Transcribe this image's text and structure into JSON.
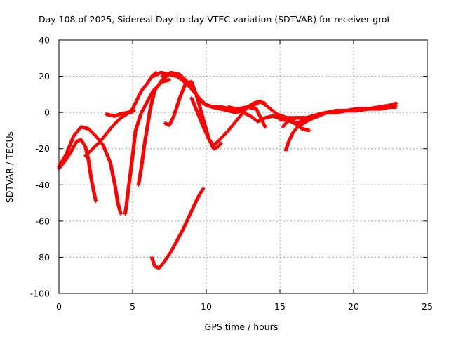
{
  "chart_data": {
    "type": "scatter",
    "title": "Day 108 of 2025, Sidereal Day-to-day VTEC variation (SDTVAR) for receiver grot",
    "xlabel": "GPS time / hours",
    "ylabel": "SDTVAR / TECUs",
    "xlim": [
      0,
      25
    ],
    "ylim": [
      -100,
      40
    ],
    "xticks": [
      0,
      5,
      10,
      15,
      20,
      25
    ],
    "yticks": [
      -100,
      -80,
      -60,
      -40,
      -20,
      0,
      20,
      40
    ],
    "grid": true,
    "marker": "+",
    "color": "#ff0000",
    "series": [
      {
        "x": [
          0.0,
          0.4,
          0.8,
          1.2,
          1.5,
          1.8,
          2.0,
          2.2,
          2.5
        ],
        "y": [
          -31,
          -27,
          -22,
          -16,
          -15,
          -19,
          -26,
          -37,
          -49
        ]
      },
      {
        "x": [
          0.0,
          0.5,
          1.0,
          1.5,
          2.0,
          2.5,
          3.0,
          3.5,
          3.8,
          4.0,
          4.2
        ],
        "y": [
          -30,
          -23,
          -13,
          -8,
          -9,
          -13,
          -18,
          -28,
          -40,
          -50,
          -56
        ]
      },
      {
        "x": [
          1.8,
          2.3,
          2.8,
          3.2,
          3.7,
          4.2,
          4.6,
          5.0,
          5.3,
          5.6,
          6.0,
          6.3,
          6.6
        ],
        "y": [
          -24,
          -20,
          -16,
          -12,
          -7,
          -3,
          -1,
          2,
          7,
          12,
          16,
          20,
          22
        ]
      },
      {
        "x": [
          3.2,
          3.5,
          3.8,
          4.1,
          4.4,
          4.7,
          4.9,
          5.1
        ],
        "y": [
          -1,
          -1.5,
          -2,
          -1,
          -0.5,
          0,
          0,
          1
        ]
      },
      {
        "x": [
          4.5,
          4.6,
          4.8,
          5.0,
          5.2,
          5.6,
          6.0,
          6.4,
          7.0,
          7.5
        ],
        "y": [
          -56,
          -50,
          -37,
          -24,
          -10,
          0,
          6,
          12,
          17,
          18
        ]
      },
      {
        "x": [
          5.4,
          5.6,
          5.8,
          6.0,
          6.2,
          6.5,
          7.0,
          7.5,
          8.0,
          8.6,
          9.2,
          9.8,
          10.4,
          11.0
        ],
        "y": [
          -40,
          -30,
          -18,
          -8,
          2,
          12,
          18,
          21,
          21,
          18,
          11,
          5,
          3,
          2
        ]
      },
      {
        "x": [
          7.2,
          7.5,
          7.8,
          8.2,
          8.6,
          9.0,
          9.4,
          9.8,
          10.2,
          10.5,
          10.8,
          11.0
        ],
        "y": [
          -6,
          -7,
          -2,
          8,
          16,
          17,
          8,
          -4,
          -15,
          -20,
          -19,
          -17
        ]
      },
      {
        "x": [
          6.4,
          6.9,
          7.5,
          8.0,
          8.5,
          9.0,
          9.5,
          10.0,
          10.5,
          11.0,
          11.5,
          12.0,
          12.4,
          12.8,
          13.2,
          13.6,
          14.0
        ],
        "y": [
          20,
          22,
          21,
          20,
          17,
          13,
          8,
          4,
          3,
          2,
          1,
          0,
          1,
          3,
          5,
          6,
          5
        ]
      },
      {
        "x": [
          7.0,
          7.6,
          8.2,
          8.8,
          9.4,
          10.0,
          10.5,
          11.0,
          11.6,
          12.2,
          12.8,
          13.2,
          13.7,
          14.2,
          14.8,
          15.5,
          16.2,
          17.0
        ],
        "y": [
          20,
          22,
          21,
          16,
          9,
          4,
          3,
          3,
          2,
          2,
          3,
          4,
          6,
          3,
          -1,
          -3,
          -3,
          -3
        ]
      },
      {
        "x": [
          9.0,
          9.4,
          9.8,
          10.2,
          10.5,
          10.8,
          11.5,
          12.2,
          12.8,
          13.4,
          14.0
        ],
        "y": [
          8,
          0,
          -8,
          -15,
          -18,
          -16,
          -10,
          -3,
          3,
          2,
          -8
        ]
      },
      {
        "x": [
          11.5,
          12.0,
          12.5,
          13.0,
          13.5,
          14.0,
          14.5,
          15.0,
          15.5,
          16.0,
          16.5,
          17.0
        ],
        "y": [
          3,
          2,
          0,
          -2,
          -5,
          -3,
          -2,
          -3,
          -4,
          -6,
          -9,
          -10
        ]
      },
      {
        "x": [
          15.2,
          15.5,
          15.8,
          16.1,
          16.4,
          16.8,
          17.2,
          17.7,
          18.2,
          18.8,
          19.5,
          20.2,
          21.0,
          21.8,
          22.5,
          22.9
        ],
        "y": [
          -8,
          -5,
          -4,
          -3,
          -3,
          -3,
          -2,
          -1,
          0,
          0,
          1,
          1,
          2,
          3,
          3,
          4
        ]
      },
      {
        "x": [
          15.4,
          15.6,
          15.9,
          16.2,
          16.6,
          17.0,
          17.6,
          18.2,
          18.8,
          19.5,
          20.2,
          21.0,
          21.8,
          22.5,
          22.9
        ],
        "y": [
          -21,
          -16,
          -11,
          -8,
          -6,
          -4,
          -2,
          0,
          0,
          1,
          1,
          2,
          2,
          3,
          3
        ]
      },
      {
        "x": [
          15.0,
          15.4,
          15.8,
          16.2,
          16.6,
          17.0,
          17.6,
          18.2,
          18.8,
          19.5,
          20.2,
          21.0,
          21.8,
          22.5,
          22.9
        ],
        "y": [
          -4,
          -4,
          -5,
          -6,
          -4,
          -3,
          -1,
          0,
          1,
          1,
          2,
          2,
          3,
          4,
          5
        ]
      },
      {
        "x": [
          6.3,
          6.5,
          6.8,
          7.2,
          7.6,
          8.0,
          8.4,
          8.8,
          9.2,
          9.5,
          9.8
        ],
        "y": [
          -80,
          -85,
          -86,
          -82,
          -77,
          -71,
          -65,
          -58,
          -51,
          -46,
          -42
        ]
      }
    ]
  }
}
